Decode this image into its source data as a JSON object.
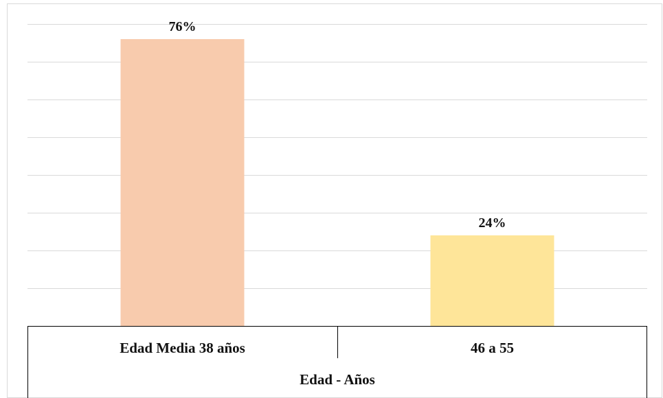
{
  "chart_data": {
    "type": "bar",
    "categories": [
      "Edad Media 38 años",
      "46 a 55"
    ],
    "values": [
      76,
      24
    ],
    "data_labels": [
      "76%",
      "24%"
    ],
    "group_label": "Edad - Años",
    "bar_colors": [
      "#F8CBAD",
      "#FEE599"
    ],
    "ylim": [
      0,
      80
    ],
    "grid": true,
    "legend": "none"
  }
}
